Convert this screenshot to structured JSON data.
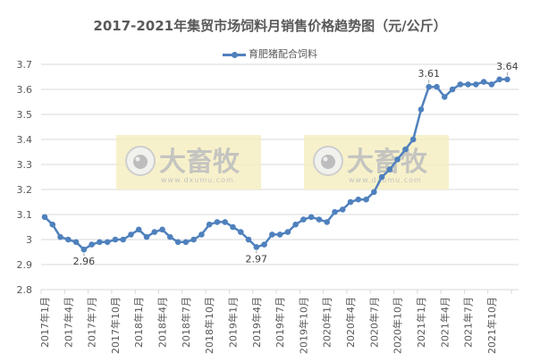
{
  "chart_data": {
    "type": "line",
    "title": "2017-2021年集贸市场饲料月销售价格趋势图（元/公斤）",
    "xlabel": "",
    "ylabel": "",
    "ylim": [
      2.8,
      3.7
    ],
    "yticks": [
      "2.8",
      "2.9",
      "3",
      "3.1",
      "3.2",
      "3.3",
      "3.4",
      "3.5",
      "3.6",
      "3.7"
    ],
    "grid": true,
    "legend_position": "top",
    "x_tick_labels": [
      "2017年1月",
      "2017年4月",
      "2017年7月",
      "2017年10月",
      "2018年1月",
      "2018年4月",
      "2018年7月",
      "2018年10月",
      "2019年1月",
      "2019年4月",
      "2019年7月",
      "2019年10月",
      "2020年1月",
      "2020年4月",
      "2020年7月",
      "2020年10月",
      "2021年1月",
      "2021年4月",
      "2021年7月",
      "2021年10月"
    ],
    "series": [
      {
        "name": "育肥猪配合饲料",
        "color": "#4f81bd",
        "values": [
          3.09,
          3.06,
          3.01,
          3.0,
          2.99,
          2.96,
          2.98,
          2.99,
          2.99,
          3.0,
          3.0,
          3.02,
          3.04,
          3.01,
          3.03,
          3.04,
          3.01,
          2.99,
          2.99,
          3.0,
          3.02,
          3.06,
          3.07,
          3.07,
          3.05,
          3.03,
          3.0,
          2.97,
          2.98,
          3.02,
          3.02,
          3.03,
          3.06,
          3.08,
          3.09,
          3.08,
          3.07,
          3.11,
          3.12,
          3.15,
          3.16,
          3.16,
          3.19,
          3.25,
          3.28,
          3.32,
          3.36,
          3.4,
          3.52,
          3.61,
          3.61,
          3.57,
          3.6,
          3.62,
          3.62,
          3.62,
          3.63,
          3.62,
          3.64,
          3.64
        ]
      }
    ],
    "annotations": [
      {
        "index": 5,
        "label": "2.96"
      },
      {
        "index": 27,
        "label": "2.97"
      },
      {
        "index": 49,
        "label": "3.61"
      },
      {
        "index": 59,
        "label": "3.64"
      }
    ]
  },
  "watermark": {
    "text": "大畜牧",
    "url_text": "www.dxumu.com"
  }
}
